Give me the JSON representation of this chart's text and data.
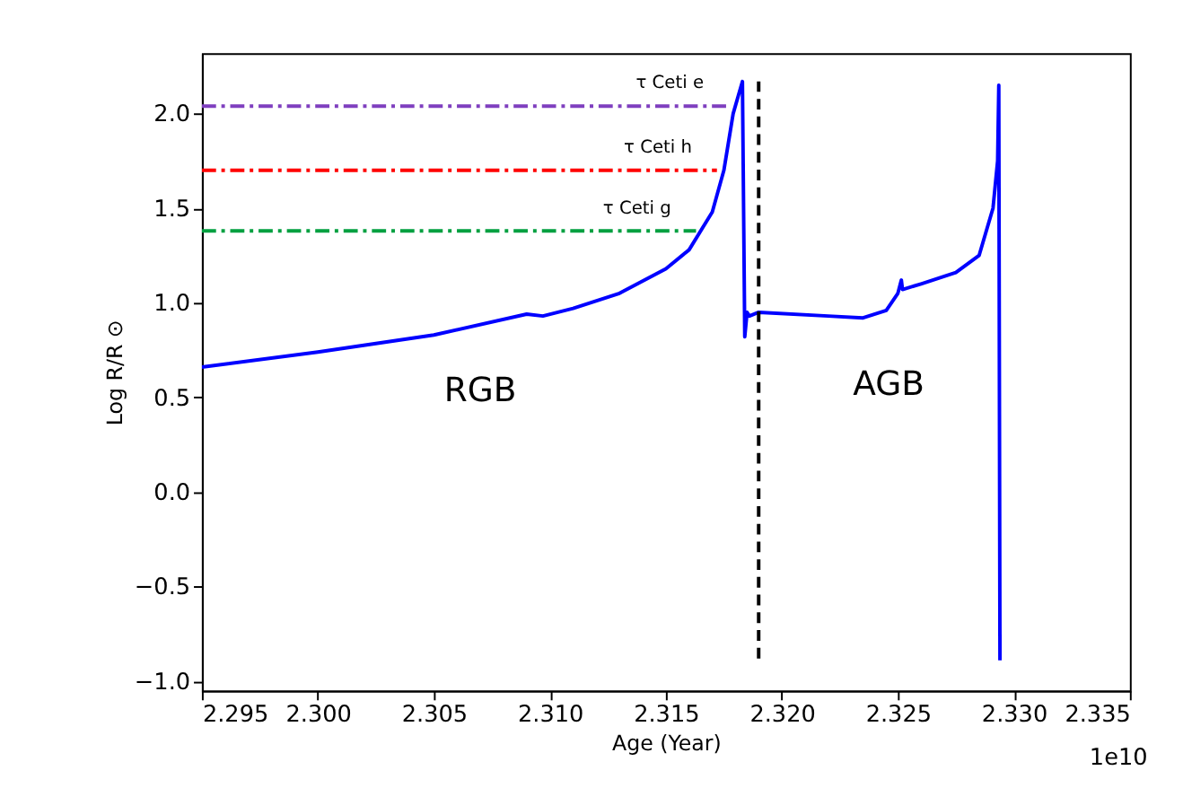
{
  "chart_data": {
    "type": "line",
    "xlabel": "Age (Year)",
    "ylabel": "Log R/R ⊙",
    "xlim": [
      2.295,
      2.335
    ],
    "xticks": [
      2.295,
      {
        "value": 2.3,
        "label": "2.300"
      },
      2.305,
      {
        "value": 2.31,
        "label": "2.310"
      },
      2.315,
      {
        "value": 2.32,
        "label": "2.320"
      },
      2.325,
      {
        "value": 2.33,
        "label": "2.330"
      },
      2.335
    ],
    "ylim": [
      -1.05,
      2.32
    ],
    "yticks": [
      {
        "value": -1,
        "label": "−1.0"
      },
      {
        "value": -0.5,
        "label": "−0.5"
      },
      {
        "value": 0,
        "label": "0.0"
      },
      0.5,
      {
        "value": 1,
        "label": "1.0"
      },
      1.5,
      {
        "value": 2,
        "label": "2.0"
      }
    ],
    "grid": false,
    "marker": "none",
    "series": [
      {
        "color": "#0000ff",
        "line_style": "solid",
        "x": [
          2.295,
          2.3,
          2.305,
          2.309,
          2.3097,
          2.311,
          2.313,
          2.315,
          2.316,
          2.317,
          2.3175,
          2.3179,
          2.3183,
          2.3184,
          2.3185,
          2.3186,
          2.319,
          2.322,
          2.3235,
          2.3245,
          2.325,
          2.32515,
          2.3252,
          2.326,
          2.3275,
          2.3285,
          2.3291,
          2.3293,
          2.32935,
          2.3294
        ],
        "values": [
          0.66,
          0.74,
          0.83,
          0.94,
          0.93,
          0.97,
          1.05,
          1.18,
          1.28,
          1.48,
          1.7,
          2.0,
          2.17,
          0.82,
          0.95,
          0.93,
          0.95,
          0.93,
          0.92,
          0.96,
          1.05,
          1.12,
          1.07,
          1.1,
          1.16,
          1.25,
          1.5,
          1.75,
          2.15,
          -0.89
        ]
      },
      {
        "color": "#000000",
        "line_style": "dashed",
        "x": [
          2.319,
          2.319
        ],
        "values": [
          -0.88,
          2.17
        ]
      },
      {
        "name": "τ Ceti e",
        "color": "#7f3fbf",
        "line_style": "dashdot",
        "x": [
          2.295,
          2.3177
        ],
        "values": [
          2.04,
          2.04
        ]
      },
      {
        "name": "τ Ceti h",
        "color": "#ff0000",
        "line_style": "dashdot",
        "x": [
          2.295,
          2.3172
        ],
        "values": [
          1.7,
          1.7
        ]
      },
      {
        "name": "τ Ceti g",
        "color": "#00a040",
        "line_style": "dashdot",
        "x": [
          2.295,
          2.3163
        ],
        "values": [
          1.38,
          1.38
        ]
      }
    ],
    "annotations": [
      "RGB",
      "AGB",
      "1e10"
    ]
  }
}
